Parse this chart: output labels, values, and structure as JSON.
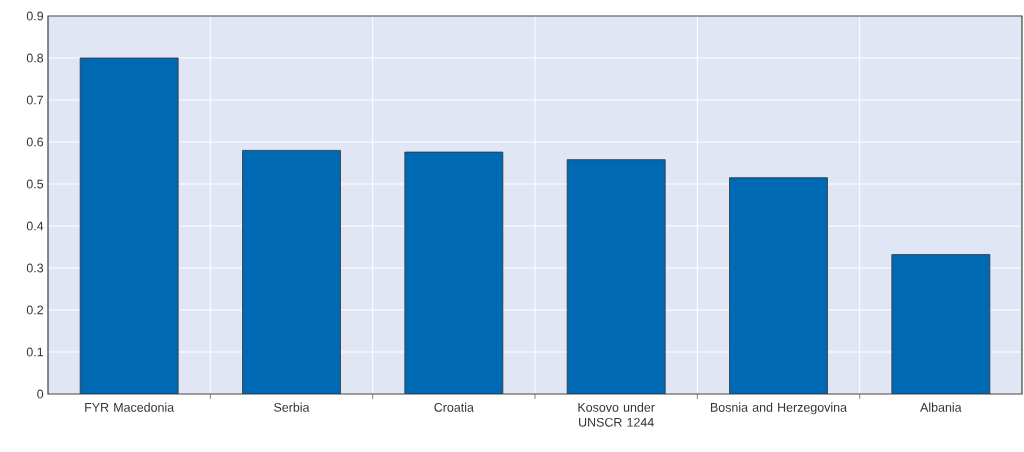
{
  "chart_data": {
    "type": "bar",
    "categories": [
      "FYR Macedonia",
      "Serbia",
      "Croatia",
      "Kosovo under UNSCR 1244",
      "Bosnia and Herzegovina",
      "Albania"
    ],
    "values": [
      0.8,
      0.58,
      0.576,
      0.558,
      0.515,
      0.332
    ],
    "color": "#0069b4",
    "ylim": [
      0,
      0.9
    ],
    "yticks": [
      0,
      0.1,
      0.2,
      0.3,
      0.4,
      0.5,
      0.6,
      0.7,
      0.8,
      0.9
    ],
    "grid": true
  }
}
